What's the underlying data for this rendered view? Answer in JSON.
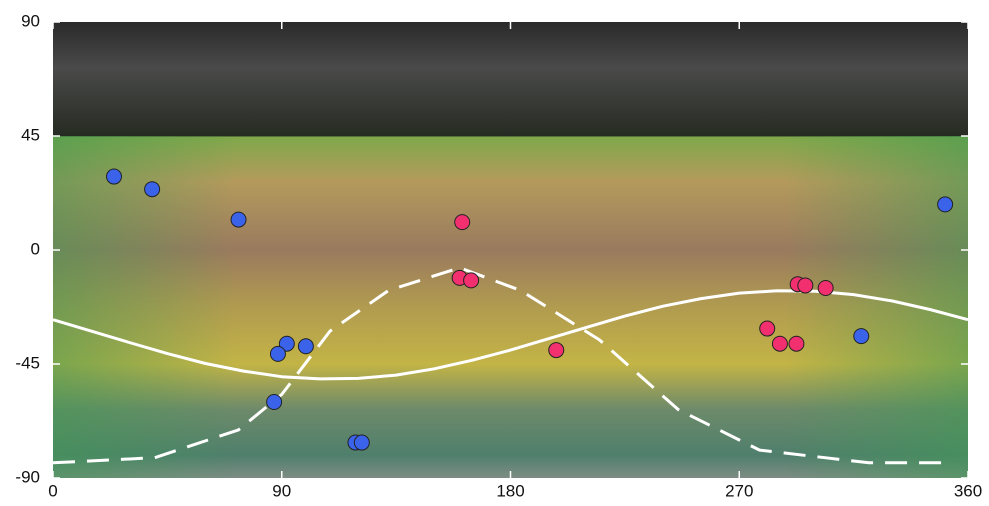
{
  "chart_data": {
    "type": "scatter",
    "xlim": [
      0,
      360
    ],
    "ylim": [
      -90,
      90
    ],
    "xticks": [
      0,
      90,
      180,
      270,
      360
    ],
    "yticks": [
      90,
      45,
      0,
      -45,
      -90
    ],
    "series": [
      {
        "color": "#3b63ea",
        "x": [
          24,
          39,
          73,
          351,
          92,
          99.5,
          88.5,
          87,
          119,
          121.5,
          318
        ],
        "y": [
          29,
          24,
          12,
          18,
          -37,
          -38,
          -41,
          -60,
          -76,
          -76,
          -34
        ]
      },
      {
        "color": "#f2306f",
        "x": [
          161,
          160,
          164.5,
          198,
          293,
          296,
          304,
          281,
          286,
          292.5
        ],
        "y": [
          11,
          -11,
          -12,
          -39.5,
          -13.5,
          -14,
          -15,
          -31,
          -37,
          -37
        ]
      }
    ],
    "lines": [
      {
        "color": "#ffffff",
        "dashed": false,
        "x": [
          0,
          15,
          30,
          45,
          60,
          75,
          90,
          105,
          120,
          135,
          150,
          165,
          180,
          195,
          210,
          225,
          240,
          255,
          270,
          285,
          300,
          315,
          330,
          345,
          360
        ],
        "y": [
          -27.5,
          -32.0,
          -36.5,
          -40.9,
          -44.8,
          -47.8,
          -50.0,
          -50.9,
          -50.7,
          -49.4,
          -46.9,
          -43.5,
          -39.5,
          -35.0,
          -30.5,
          -26.1,
          -22.2,
          -19.2,
          -17.0,
          -16.1,
          -16.3,
          -17.6,
          -20.1,
          -23.5,
          -27.5
        ]
      },
      {
        "color": "#ffffff",
        "dashed": true,
        "x": [
          0,
          40,
          73,
          90,
          109,
          132,
          160,
          184,
          215,
          246,
          278,
          321,
          353
        ],
        "y": [
          -84,
          -82,
          -71,
          -57,
          -32,
          -16,
          -7,
          -16,
          -35.5,
          -63,
          -79,
          -84,
          -84
        ]
      }
    ]
  }
}
